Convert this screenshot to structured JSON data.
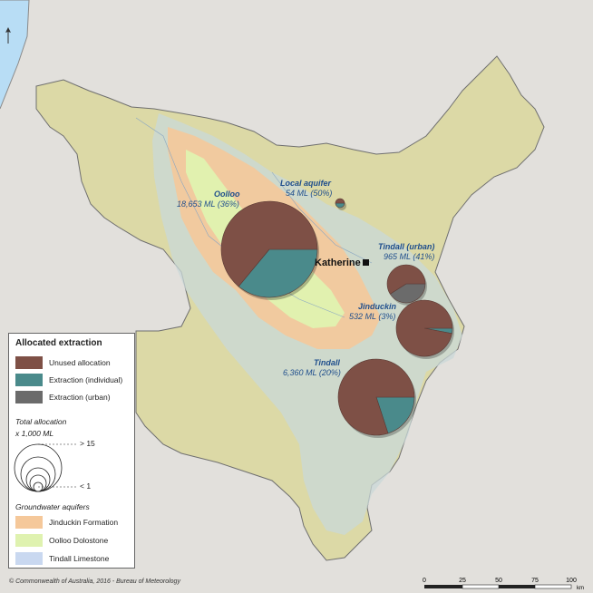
{
  "map": {
    "town": "Katherine",
    "labels": [
      {
        "name": "Oolloo",
        "value": "18,653 ML (36%)"
      },
      {
        "name": "Local aquifer",
        "value": "54 ML (50%)"
      },
      {
        "name": "Tindall (urban)",
        "value": "965 ML (41%)"
      },
      {
        "name": "Jinduckin",
        "value": "532 ML (3%)"
      },
      {
        "name": "Tindall",
        "value": "6,360 ML (20%)"
      }
    ],
    "pies": [
      {
        "name": "Oolloo",
        "unused_fraction": 0.64,
        "individual_fraction": 0.36,
        "urban_fraction": 0
      },
      {
        "name": "Local aquifer",
        "unused_fraction": 0.5,
        "individual_fraction": 0.5,
        "urban_fraction": 0
      },
      {
        "name": "Tindall (urban)",
        "unused_fraction": 0.59,
        "individual_fraction": 0,
        "urban_fraction": 0.41
      },
      {
        "name": "Jinduckin",
        "unused_fraction": 0.97,
        "individual_fraction": 0.03,
        "urban_fraction": 0
      },
      {
        "name": "Tindall",
        "unused_fraction": 0.8,
        "individual_fraction": 0.2,
        "urban_fraction": 0
      }
    ]
  },
  "legend": {
    "title": "Allocated extraction",
    "items": [
      {
        "label": "Unused allocation",
        "color": "#7e5046"
      },
      {
        "label": "Extraction (individual)",
        "color": "#4a8a8b"
      },
      {
        "label": "Extraction (urban)",
        "color": "#6b6b6b"
      }
    ],
    "total_title": "Total allocation",
    "total_unit": "x 1,000 ML",
    "size_max": "> 15",
    "size_min": "< 1",
    "aquifer_title": "Groundwater aquifers",
    "aquifers": [
      {
        "label": "Jinduckin Formation",
        "color": "#f5c89a"
      },
      {
        "label": "Oolloo Dolostone",
        "color": "#dff2b0"
      },
      {
        "label": "Tindall Limestone",
        "color": "#c9d8f0"
      }
    ]
  },
  "scale": {
    "ticks": [
      "0",
      "25",
      "50",
      "75",
      "100"
    ],
    "unit": "km"
  },
  "credit": "© Commonwealth of Australia, 2016 - Bureau of Meteorology"
}
